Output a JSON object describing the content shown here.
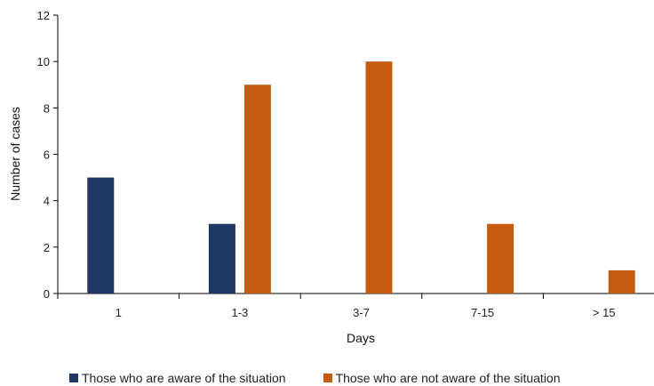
{
  "chart_data": {
    "type": "bar",
    "categories": [
      "1",
      "1-3",
      "3-7",
      "7-15",
      "> 15"
    ],
    "series": [
      {
        "name": "Those who are aware of the situation",
        "values": [
          5,
          3,
          0,
          0,
          0
        ],
        "color": "#1f3864"
      },
      {
        "name": "Those who are not aware of the situation",
        "values": [
          0,
          9,
          10,
          3,
          1
        ],
        "color": "#c55a11"
      }
    ],
    "xlabel": "Days",
    "ylabel": "Number of cases",
    "ylim": [
      0,
      12
    ],
    "yticks": [
      0,
      2,
      4,
      6,
      8,
      10,
      12
    ],
    "grid": false,
    "legend_position": "bottom"
  }
}
